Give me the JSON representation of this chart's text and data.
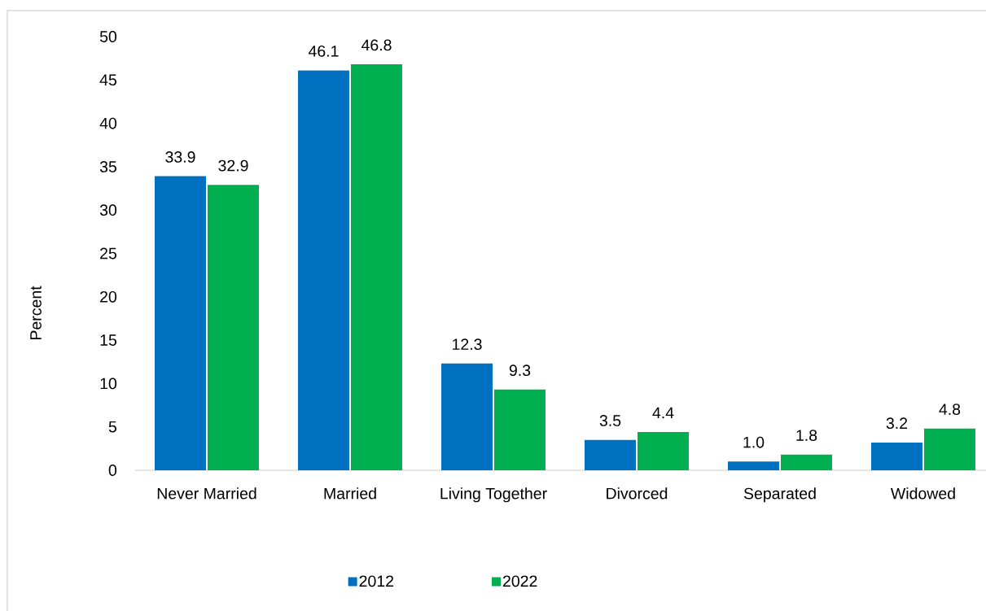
{
  "chart_data": {
    "type": "bar",
    "ylabel": "Percent",
    "categories": [
      "Never Married",
      "Married",
      "Living Together",
      "Divorced",
      "Separated",
      "Widowed"
    ],
    "series": [
      {
        "name": "2012",
        "color": "#0070c0",
        "values": [
          33.9,
          46.1,
          12.3,
          3.5,
          1.0,
          3.2
        ],
        "value_labels": [
          "33.9",
          "46.1",
          "12.3",
          "3.5",
          "1.0",
          "3.2"
        ]
      },
      {
        "name": "2022",
        "color": "#00b050",
        "values": [
          32.9,
          46.8,
          9.3,
          4.4,
          1.8,
          4.8
        ],
        "value_labels": [
          "32.9",
          "46.8",
          "9.3",
          "4.4",
          "1.8",
          "4.8"
        ]
      }
    ],
    "ylim": [
      0,
      50
    ],
    "yticks": [
      0,
      5,
      10,
      15,
      20,
      25,
      30,
      35,
      40,
      45,
      50
    ],
    "legend": "bottom"
  }
}
